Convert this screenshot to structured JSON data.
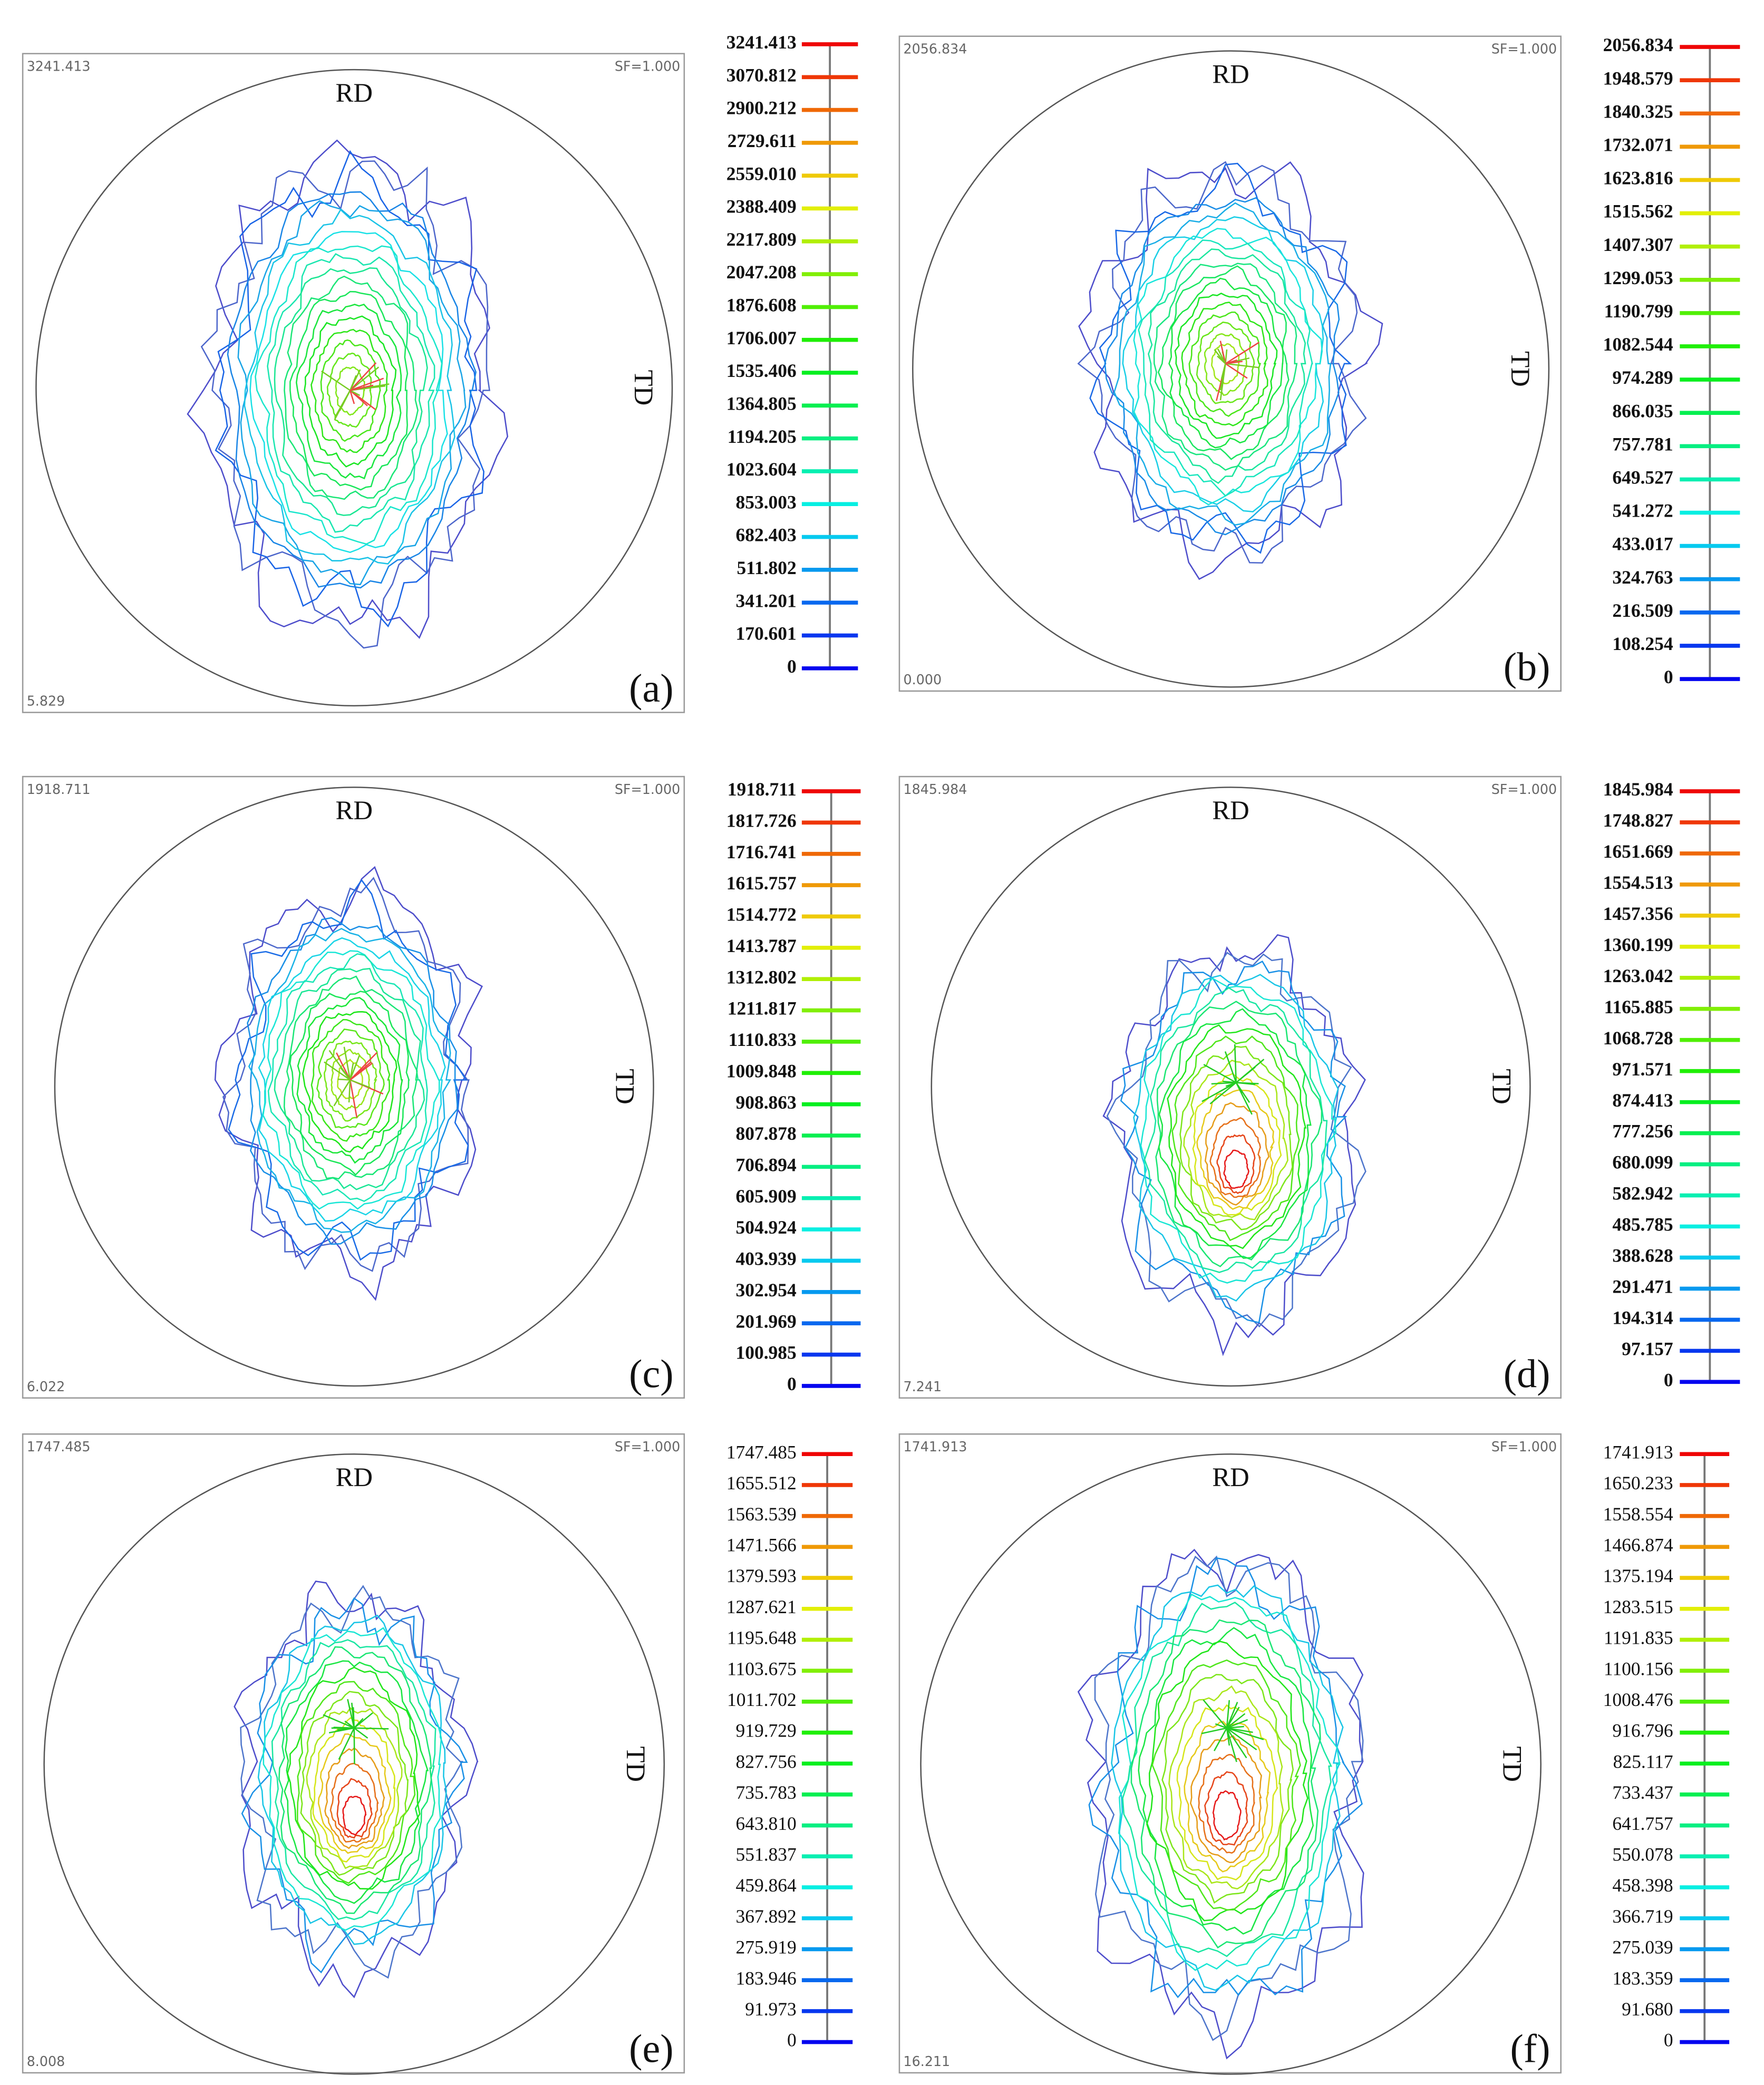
{
  "panels": [
    {
      "label": "(a)",
      "max": "3241.413",
      "min": "5.829",
      "sf": "SF=1.000",
      "rd": "RD",
      "td": "TD",
      "legend": [
        "3241.413",
        "3070.812",
        "2900.212",
        "2729.611",
        "2559.010",
        "2388.409",
        "2217.809",
        "2047.208",
        "1876.608",
        "1706.007",
        "1535.406",
        "1364.805",
        "1194.205",
        "1023.604",
        "853.003",
        "682.403",
        "511.802",
        "341.201",
        "170.601",
        "0"
      ]
    },
    {
      "label": "(b)",
      "max": "2056.834",
      "min": "0.000",
      "sf": "SF=1.000",
      "rd": "RD",
      "td": "TD",
      "legend": [
        "2056.834",
        "1948.579",
        "1840.325",
        "1732.071",
        "1623.816",
        "1515.562",
        "1407.307",
        "1299.053",
        "1190.799",
        "1082.544",
        "974.289",
        "866.035",
        "757.781",
        "649.527",
        "541.272",
        "433.017",
        "324.763",
        "216.509",
        "108.254",
        "0"
      ]
    },
    {
      "label": "(c)",
      "max": "1918.711",
      "min": "6.022",
      "sf": "SF=1.000",
      "rd": "RD",
      "td": "TD",
      "legend": [
        "1918.711",
        "1817.726",
        "1716.741",
        "1615.757",
        "1514.772",
        "1413.787",
        "1312.802",
        "1211.817",
        "1110.833",
        "1009.848",
        "908.863",
        "807.878",
        "706.894",
        "605.909",
        "504.924",
        "403.939",
        "302.954",
        "201.969",
        "100.985",
        "0"
      ]
    },
    {
      "label": "(d)",
      "max": "1845.984",
      "min": "7.241",
      "sf": "SF=1.000",
      "rd": "RD",
      "td": "TD",
      "legend": [
        "1845.984",
        "1748.827",
        "1651.669",
        "1554.513",
        "1457.356",
        "1360.199",
        "1263.042",
        "1165.885",
        "1068.728",
        "971.571",
        "874.413",
        "777.256",
        "680.099",
        "582.942",
        "485.785",
        "388.628",
        "291.471",
        "194.314",
        "97.157",
        "0"
      ]
    },
    {
      "label": "(e)",
      "max": "1747.485",
      "min": "8.008",
      "sf": "SF=1.000",
      "rd": "RD",
      "td": "TD",
      "legend": [
        "1747.485",
        "1655.512",
        "1563.539",
        "1471.566",
        "1379.593",
        "1287.621",
        "1195.648",
        "1103.675",
        "1011.702",
        "919.729",
        "827.756",
        "735.783",
        "643.810",
        "551.837",
        "459.864",
        "367.892",
        "275.919",
        "183.946",
        "91.973",
        "0"
      ]
    },
    {
      "label": "(f)",
      "max": "1741.913",
      "min": "16.211",
      "sf": "SF=1.000",
      "rd": "RD",
      "td": "TD",
      "legend": [
        "1741.913",
        "1650.233",
        "1558.554",
        "1466.874",
        "1375.194",
        "1283.515",
        "1191.835",
        "1100.156",
        "1008.476",
        "916.796",
        "825.117",
        "733.437",
        "641.757",
        "550.078",
        "458.398",
        "366.719",
        "275.039",
        "183.359",
        "91.680",
        "0"
      ]
    }
  ]
}
